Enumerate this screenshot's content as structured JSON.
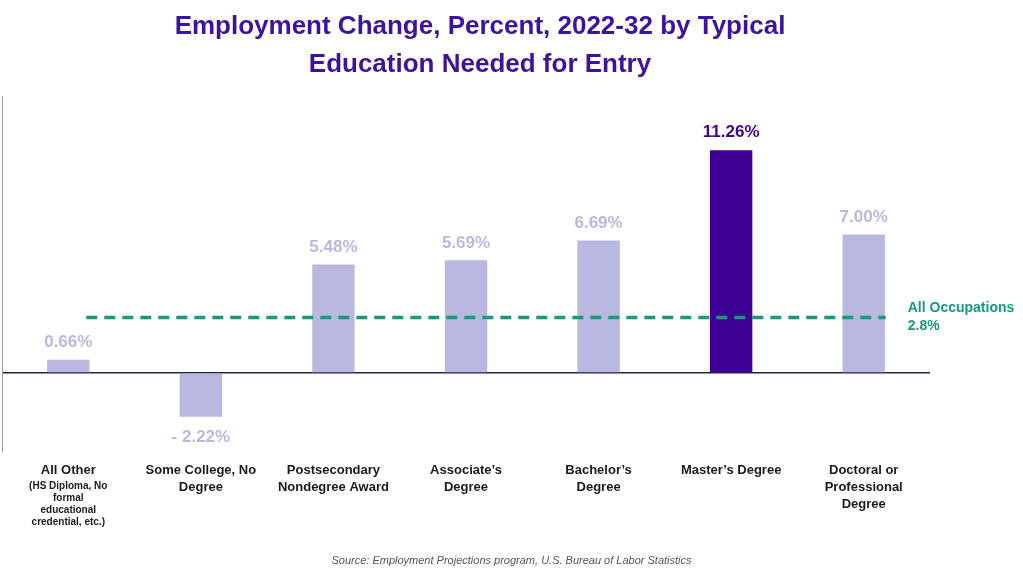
{
  "chart_data": {
    "type": "bar",
    "title": "Employment Change, Percent, 2022-32 by Typical Education Needed for Entry",
    "categories": [
      "All Other (HS Diploma, No formal educational credential, etc.)",
      "Some College, No Degree",
      "Postsecondary Nondegree Award",
      "Associate’s Degree",
      "Bachelor’s Degree",
      "Master’s Degree",
      "Doctoral or Professional Degree"
    ],
    "values": [
      0.66,
      -2.22,
      5.48,
      5.69,
      6.69,
      11.26,
      7.0
    ],
    "value_labels": [
      "0.66%",
      "- 2.22%",
      "5.48%",
      "5.69%",
      "6.69%",
      "11.26%",
      "7.00%"
    ],
    "colors": [
      "#b8b8e0",
      "#b8b8e0",
      "#b8b8e0",
      "#b8b8e0",
      "#b8b8e0",
      "#3f0096",
      "#b8b8e0"
    ],
    "ylim": [
      -4,
      14
    ],
    "yticks": [
      0
    ],
    "grid": true,
    "tick_labels": "x",
    "data_labels": true,
    "reference_line": {
      "value": 2.8,
      "label": [
        "All Occupations",
        "2.8%"
      ],
      "color": "#17997b"
    },
    "source": "Source: Employment Projections program, U.S. Bureau of Labor Statistics"
  }
}
